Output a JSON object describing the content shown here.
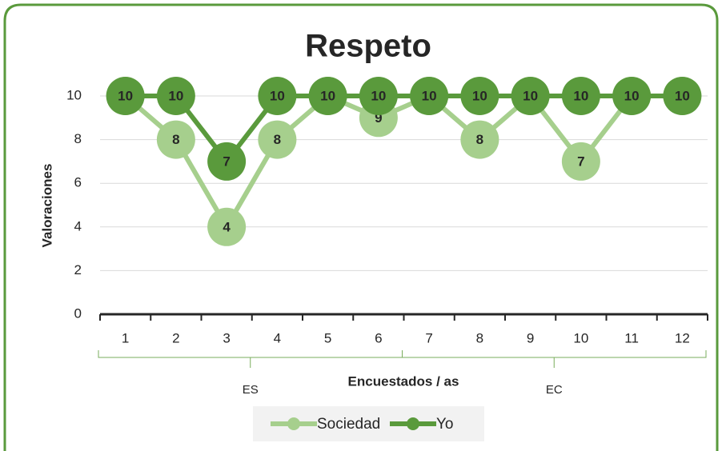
{
  "chart_data": {
    "type": "line",
    "title": "Respeto",
    "x_label": "Encuestados / as",
    "y_label": "Valoraciones",
    "categories": [
      "1",
      "2",
      "3",
      "4",
      "5",
      "6",
      "7",
      "8",
      "9",
      "10",
      "11",
      "12"
    ],
    "groups": [
      {
        "label": "ES",
        "span": 6
      },
      {
        "label": "EC",
        "span": 6
      }
    ],
    "series": [
      {
        "name": "Sociedad",
        "color": "#a6cf8d",
        "values": [
          10,
          8,
          4,
          8,
          10,
          9,
          10,
          8,
          10,
          7,
          10,
          10
        ]
      },
      {
        "name": "Yo",
        "color": "#5a9a3c",
        "values": [
          10,
          10,
          7,
          10,
          10,
          10,
          10,
          10,
          10,
          10,
          10,
          10
        ]
      }
    ],
    "ylim": [
      0,
      10
    ],
    "yticks": [
      0,
      2,
      4,
      6,
      8,
      10
    ],
    "grid": true,
    "legend": "bottom"
  }
}
